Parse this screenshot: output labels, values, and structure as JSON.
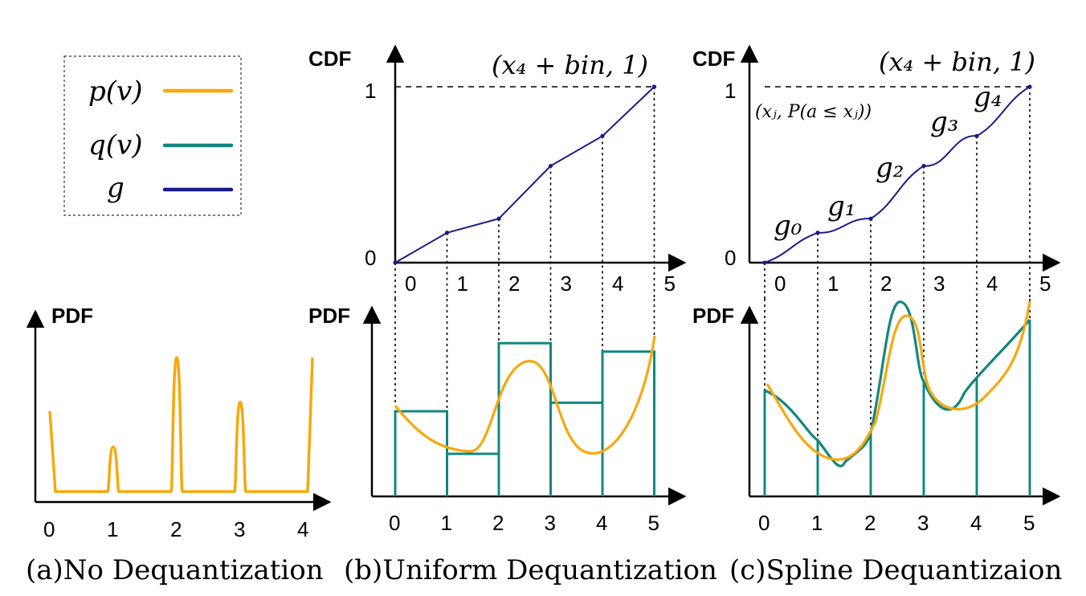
{
  "colors": {
    "p": "#F7A80C",
    "q": "#138780",
    "g": "#1A1A8C",
    "axis": "#000000"
  },
  "legend": {
    "items": [
      {
        "label": "p(v)",
        "color": "#F7A80C"
      },
      {
        "label": "q(v)",
        "color": "#138780"
      },
      {
        "label": "g",
        "color": "#1A1A8C"
      }
    ]
  },
  "panels": {
    "a": {
      "pdf_label": "PDF",
      "x_ticks": [
        "0",
        "1",
        "2",
        "3",
        "4"
      ],
      "caption": "(a)No Dequantization",
      "spikes": [
        0.45,
        0.25,
        0.75,
        0.5,
        0.75
      ]
    },
    "b": {
      "cdf_label": "CDF",
      "pdf_label": "PDF",
      "cdf_ticks_y": [
        "0",
        "1"
      ],
      "cdf_ticks_x": [
        "0",
        "1",
        "2",
        "3",
        "4",
        "5"
      ],
      "pdf_ticks_x": [
        "0",
        "1",
        "2",
        "3",
        "4",
        "5"
      ],
      "end_point": "(x₄ + bin, 1)",
      "caption": "(b)Uniform Dequantization",
      "cdf_values": [
        0,
        0.17,
        0.25,
        0.55,
        0.72,
        1.0
      ],
      "q_bins": [
        0.5,
        0.25,
        0.9,
        0.55,
        0.85
      ]
    },
    "c": {
      "cdf_label": "CDF",
      "pdf_label": "PDF",
      "cdf_ticks_y": [
        "0",
        "1"
      ],
      "cdf_ticks_x": [
        "0",
        "1",
        "2",
        "3",
        "4",
        "5"
      ],
      "pdf_ticks_x": [
        "0",
        "1",
        "2",
        "3",
        "4",
        "5"
      ],
      "end_point": "(x₄ + bin, 1)",
      "point_label": "(xⱼ, P(a ≤ xⱼ))",
      "segment_labels": [
        "g₀",
        "g₁",
        "g₂",
        "g₃",
        "g₄"
      ],
      "caption": "(c)Spline Dequantizaion",
      "cdf_values": [
        0,
        0.17,
        0.25,
        0.55,
        0.72,
        1.0
      ]
    }
  }
}
